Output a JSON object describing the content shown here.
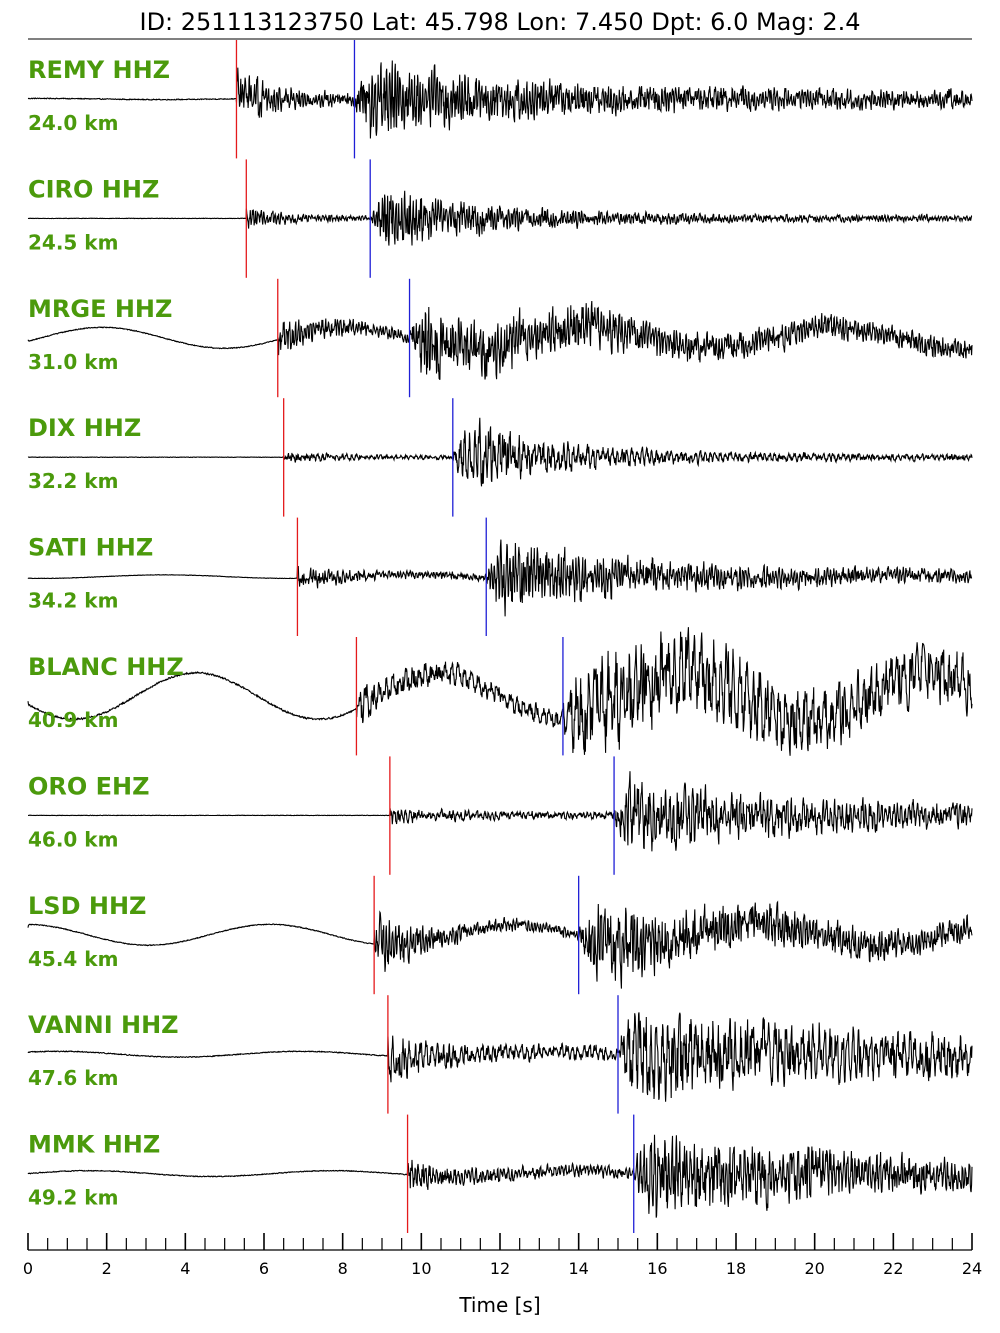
{
  "header": "ID: 251113123750 Lat:  45.798 Lon:   7.450 Dpt:     6.0 Mag:   2.4",
  "colors": {
    "label": "#4b9a0c",
    "p_pick": "#e41a1c",
    "s_pick": "#1f1fd6",
    "trace": "#000000"
  },
  "chart_data": {
    "type": "seismogram",
    "xlabel": "Time [s]",
    "xlim": [
      0,
      24
    ],
    "x_ticks": [
      0,
      2,
      4,
      6,
      8,
      10,
      12,
      14,
      16,
      18,
      20,
      22,
      24
    ],
    "x_minor_step": 0.5,
    "traces": [
      {
        "station": "REMY HHZ",
        "distance": "24.0 km",
        "p": 5.3,
        "s": 8.3,
        "pre_amp": 0.02,
        "long_amp": 0.01,
        "p_amp": 0.55,
        "s_amp": 0.85,
        "coda": 0.22,
        "decay": 4.0,
        "freq": 14
      },
      {
        "station": "CIRO HHZ",
        "distance": "24.5 km",
        "p": 5.55,
        "s": 8.7,
        "pre_amp": 0.01,
        "long_amp": 0.0,
        "p_amp": 0.22,
        "s_amp": 0.75,
        "coda": 0.08,
        "decay": 3.0,
        "freq": 14
      },
      {
        "station": "MRGE HHZ",
        "distance": "31.0 km",
        "p": 6.35,
        "s": 9.7,
        "pre_amp": 0.02,
        "long_amp": 0.18,
        "p_amp": 0.35,
        "s_amp": 0.8,
        "coda": 0.22,
        "decay": 5.0,
        "freq": 13
      },
      {
        "station": "DIX HHZ",
        "distance": "32.2 km",
        "p": 6.5,
        "s": 10.8,
        "pre_amp": 0.01,
        "long_amp": 0.0,
        "p_amp": 0.12,
        "s_amp": 0.9,
        "coda": 0.08,
        "decay": 2.5,
        "freq": 8
      },
      {
        "station": "SATI HHZ",
        "distance": "34.2 km",
        "p": 6.85,
        "s": 11.65,
        "pre_amp": 0.01,
        "long_amp": 0.03,
        "p_amp": 0.22,
        "s_amp": 0.95,
        "coda": 0.15,
        "decay": 3.5,
        "freq": 13
      },
      {
        "station": "BLANC HHZ",
        "distance": "40.9 km",
        "p": 8.35,
        "s": 13.6,
        "pre_amp": 0.04,
        "long_amp": 0.4,
        "p_amp": 0.28,
        "s_amp": 0.9,
        "coda": 0.4,
        "decay": 8.0,
        "freq": 6
      },
      {
        "station": "ORO EHZ",
        "distance": "46.0 km",
        "p": 9.2,
        "s": 14.9,
        "pre_amp": 0.01,
        "long_amp": 0.0,
        "p_amp": 0.15,
        "s_amp": 0.85,
        "coda": 0.15,
        "decay": 5.0,
        "freq": 10
      },
      {
        "station": "LSD HHZ",
        "distance": "45.4 km",
        "p": 8.8,
        "s": 14.0,
        "pre_amp": 0.02,
        "long_amp": 0.18,
        "p_amp": 0.7,
        "s_amp": 0.85,
        "coda": 0.2,
        "decay": 5.0,
        "freq": 13
      },
      {
        "station": "VANNI HHZ",
        "distance": "47.6 km",
        "p": 9.15,
        "s": 15.0,
        "pre_amp": 0.02,
        "long_amp": 0.05,
        "p_amp": 0.45,
        "s_amp": 0.9,
        "coda": 0.3,
        "decay": 6.0,
        "freq": 7
      },
      {
        "station": "MMK HHZ",
        "distance": "49.2 km",
        "p": 9.65,
        "s": 15.4,
        "pre_amp": 0.02,
        "long_amp": 0.05,
        "p_amp": 0.25,
        "s_amp": 0.95,
        "coda": 0.25,
        "decay": 5.0,
        "freq": 11
      }
    ]
  }
}
